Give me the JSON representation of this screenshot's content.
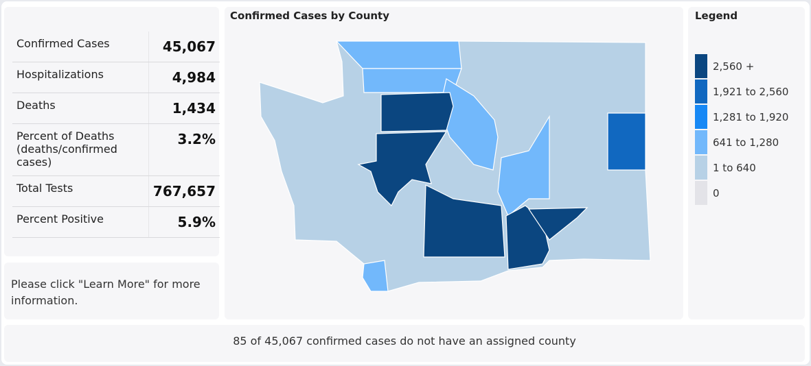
{
  "stats": [
    {
      "label": "Confirmed Cases",
      "value": "45,067"
    },
    {
      "label": "Hospitalizations",
      "value": "4,984"
    },
    {
      "label": "Deaths",
      "value": "1,434"
    },
    {
      "label": "Percent of Deaths (deaths/confirmed cases)",
      "value": "3.2%"
    },
    {
      "label": "Total Tests",
      "value": "767,657"
    },
    {
      "label": "Percent Positive",
      "value": "5.9%"
    }
  ],
  "info_text": "Please click \"Learn More\" for more information.",
  "map": {
    "title": "Confirmed Cases by County"
  },
  "legend": {
    "title": "Legend",
    "items": [
      {
        "label": "2,560 +",
        "color": "#0b4680"
      },
      {
        "label": "1,921 to 2,560",
        "color": "#1168c0"
      },
      {
        "label": "1,281 to 1,920",
        "color": "#1788f5"
      },
      {
        "label": "641 to 1,280",
        "color": "#72b8fb"
      },
      {
        "label": "1 to 640",
        "color": "#b7d1e6"
      },
      {
        "label": "0",
        "color": "#e3e3e8"
      }
    ]
  },
  "footer": "85 of 45,067 confirmed cases do not have an assigned county"
}
